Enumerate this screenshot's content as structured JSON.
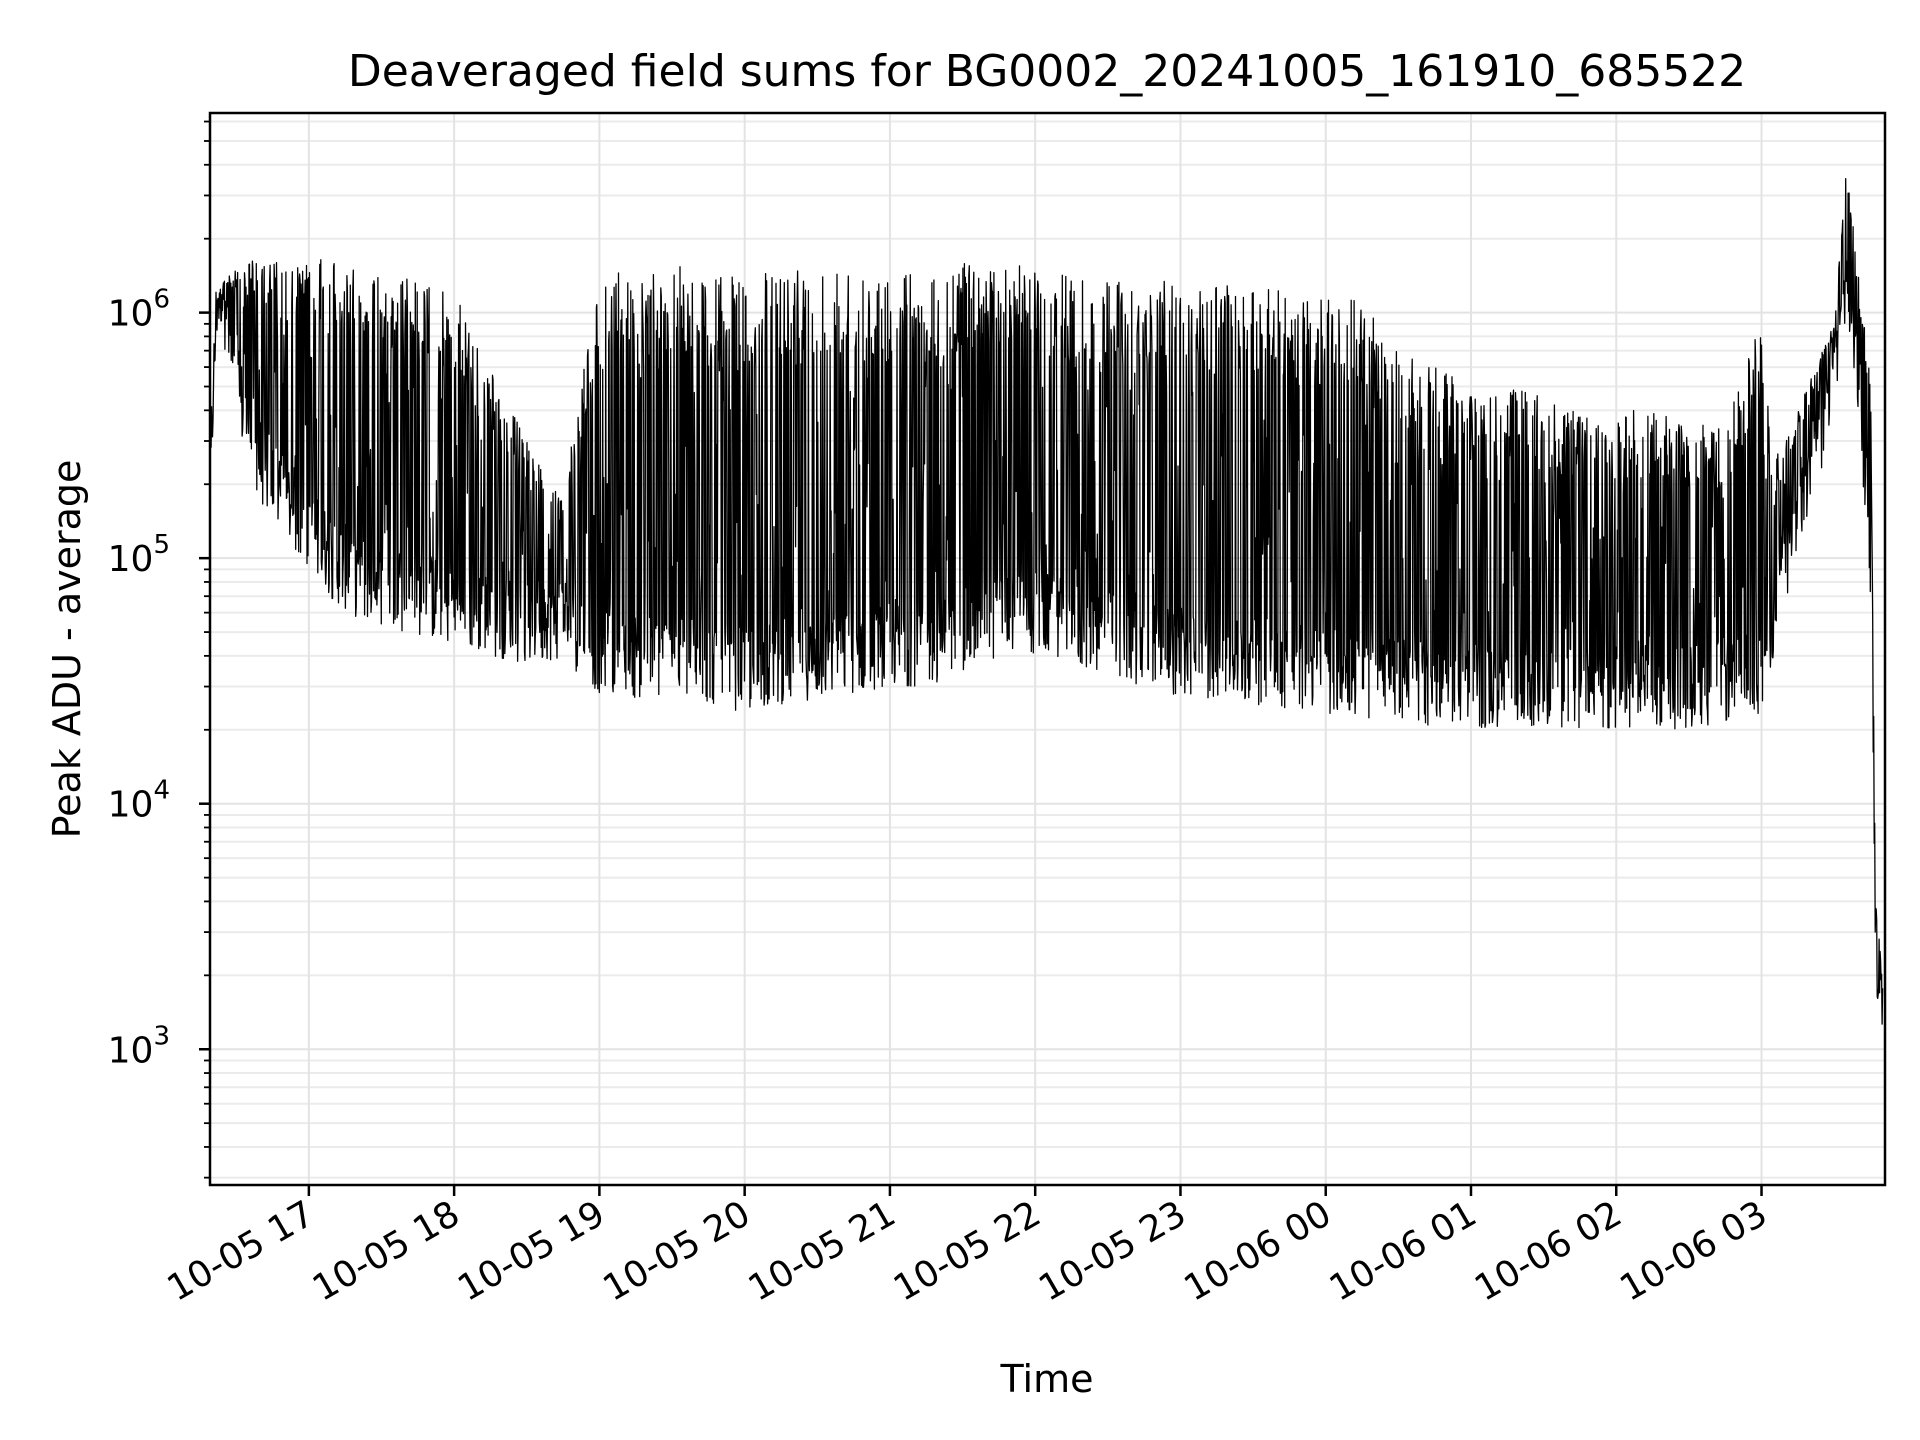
{
  "chart_data": {
    "type": "line",
    "title": "Deaveraged field sums for BG0002_20241005_161910_685522",
    "xlabel": "Time",
    "ylabel": "Peak ADU - average",
    "y_scale": "log",
    "ylim": [
      280,
      6500000
    ],
    "xlim": [
      "2024-10-05 16:19:10",
      "2024-10-06 03:51:00"
    ],
    "grid": "on (major and minor)",
    "line_color": "#000000",
    "x_ticks": [
      {
        "label": "10-05 17",
        "time": "2024-10-05 17:00"
      },
      {
        "label": "10-05 18",
        "time": "2024-10-05 18:00"
      },
      {
        "label": "10-05 19",
        "time": "2024-10-05 19:00"
      },
      {
        "label": "10-05 20",
        "time": "2024-10-05 20:00"
      },
      {
        "label": "10-05 21",
        "time": "2024-10-05 21:00"
      },
      {
        "label": "10-05 22",
        "time": "2024-10-05 22:00"
      },
      {
        "label": "10-05 23",
        "time": "2024-10-05 23:00"
      },
      {
        "label": "10-06 00",
        "time": "2024-10-06 00:00"
      },
      {
        "label": "10-06 01",
        "time": "2024-10-06 01:00"
      },
      {
        "label": "10-06 02",
        "time": "2024-10-06 02:00"
      },
      {
        "label": "10-06 03",
        "time": "2024-10-06 03:00"
      }
    ],
    "y_ticks": [
      {
        "base": "10",
        "exp": "3",
        "value": 1000
      },
      {
        "base": "10",
        "exp": "4",
        "value": 10000
      },
      {
        "base": "10",
        "exp": "5",
        "value": 100000
      },
      {
        "base": "10",
        "exp": "6",
        "value": 1000000
      }
    ],
    "series": [
      {
        "x": [
          "2024-10-05 16:19",
          "2024-10-05 16:22",
          "2024-10-05 16:24",
          "2024-10-05 16:30",
          "2024-10-05 16:40",
          "2024-10-05 16:50",
          "2024-10-05 17:00",
          "2024-10-05 17:10",
          "2024-10-05 17:20",
          "2024-10-05 17:30",
          "2024-10-05 17:40",
          "2024-10-05 17:50",
          "2024-10-05 18:00",
          "2024-10-05 18:15",
          "2024-10-05 18:30",
          "2024-10-05 18:45",
          "2024-10-05 19:00",
          "2024-10-05 19:15",
          "2024-10-05 19:30",
          "2024-10-05 19:45",
          "2024-10-05 20:00",
          "2024-10-05 20:15",
          "2024-10-05 20:30",
          "2024-10-05 20:45",
          "2024-10-05 21:00",
          "2024-10-05 21:15",
          "2024-10-05 21:30",
          "2024-10-05 21:45",
          "2024-10-05 22:00",
          "2024-10-05 22:15",
          "2024-10-05 22:30",
          "2024-10-05 22:45",
          "2024-10-05 23:00",
          "2024-10-05 23:15",
          "2024-10-05 23:30",
          "2024-10-05 23:45",
          "2024-10-06 00:00",
          "2024-10-06 00:15",
          "2024-10-06 00:30",
          "2024-10-06 00:45",
          "2024-10-06 01:00",
          "2024-10-06 01:15",
          "2024-10-06 01:30",
          "2024-10-06 01:45",
          "2024-10-06 02:00",
          "2024-10-06 02:15",
          "2024-10-06 02:30",
          "2024-10-06 02:45",
          "2024-10-06 03:00",
          "2024-10-06 03:05",
          "2024-10-06 03:15",
          "2024-10-06 03:25",
          "2024-10-06 03:30",
          "2024-10-06 03:35",
          "2024-10-06 03:40",
          "2024-10-06 03:45",
          "2024-10-06 03:47",
          "2024-10-06 03:50"
        ],
        "base": [
          200000,
          1100000,
          1300000,
          500000,
          250000,
          180000,
          130000,
          100000,
          85000,
          80000,
          75000,
          70000,
          65000,
          60000,
          55000,
          58000,
          42000,
          40000,
          40000,
          38000,
          35000,
          38000,
          40000,
          42000,
          45000,
          45000,
          50000,
          60000,
          60000,
          55000,
          50000,
          45000,
          40000,
          40000,
          38000,
          36000,
          35000,
          33000,
          32000,
          31000,
          30000,
          30000,
          30000,
          29000,
          29000,
          30000,
          30000,
          32000,
          35000,
          60000,
          150000,
          350000,
          600000,
          1300000,
          600000,
          100000,
          3000,
          1200
        ],
        "peak": [
          200000,
          1100000,
          1300000,
          1600000,
          1700000,
          1600000,
          1600000,
          1700000,
          1500000,
          1400000,
          1400000,
          1300000,
          1200000,
          600000,
          300000,
          180000,
          1400000,
          1500000,
          1600000,
          1400000,
          1400000,
          1500000,
          1500000,
          1600000,
          1500000,
          1500000,
          1600000,
          1700000,
          1500000,
          1400000,
          1400000,
          1400000,
          1300000,
          1300000,
          1300000,
          1200000,
          1200000,
          1100000,
          700000,
          600000,
          500000,
          500000,
          450000,
          400000,
          400000,
          400000,
          350000,
          350000,
          1000000,
          250000,
          400000,
          700000,
          900000,
          4000000,
          1500000,
          600000,
          5000,
          1800
        ]
      }
    ]
  }
}
